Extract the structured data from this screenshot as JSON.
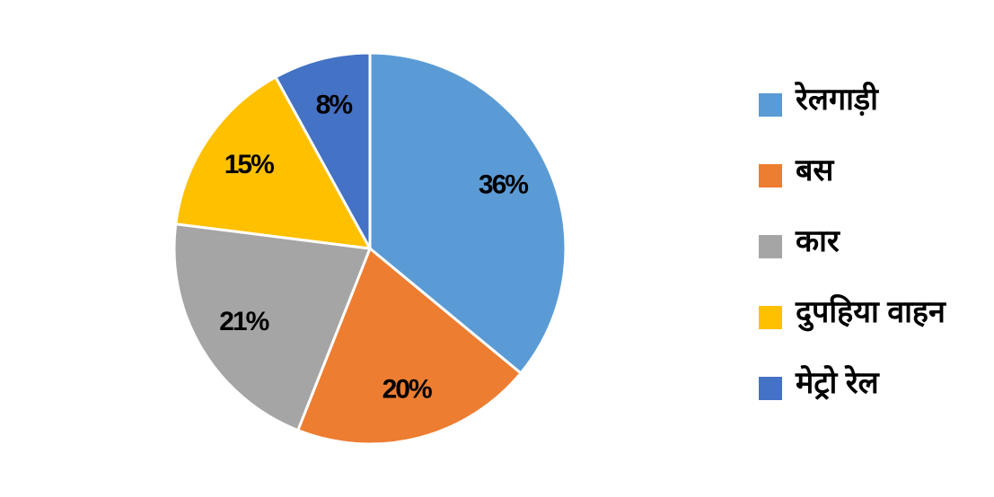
{
  "chart_data": {
    "type": "pie",
    "categories": [
      "रेलगाड़ी",
      "बस",
      "कार",
      "दुपहिया वाहन",
      "मेट्रो रेल"
    ],
    "values": [
      36,
      20,
      21,
      15,
      8
    ],
    "value_labels": [
      "36%",
      "20%",
      "21%",
      "15%",
      "8%"
    ],
    "colors": [
      "#5b9bd5",
      "#ed7d31",
      "#a5a5a5",
      "#ffc000",
      "#4472c4"
    ],
    "legend": "right"
  }
}
